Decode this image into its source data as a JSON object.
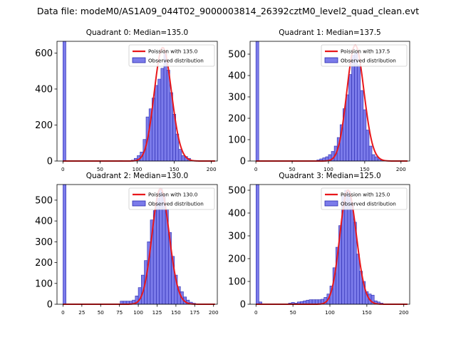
{
  "suptitle": "Data file: modeM0/AS1A09_044T02_9000003814_26392cztM0_level2_quad_clean.evt",
  "colors": {
    "bar_fill": "#7b7bea",
    "bar_edge": "#2b2bb0",
    "line": "#e8171b",
    "axis": "#000000",
    "legend_border": "#cccccc"
  },
  "chart_data": [
    {
      "type": "bar",
      "title": "Quadrant 0: Median=135.0",
      "xlim": [
        -8,
        208
      ],
      "ylim": [
        0,
        665
      ],
      "xticks": [
        0,
        50,
        100,
        150,
        200
      ],
      "yticks": [
        0,
        200,
        400,
        600
      ],
      "bin_width": 4,
      "x": [
        0,
        76,
        92,
        96,
        100,
        104,
        108,
        112,
        116,
        120,
        124,
        128,
        132,
        136,
        140,
        144,
        148,
        152,
        156,
        160,
        164,
        168
      ],
      "values": [
        665,
        3,
        5,
        15,
        30,
        50,
        120,
        245,
        290,
        350,
        420,
        455,
        515,
        595,
        505,
        380,
        260,
        150,
        65,
        30,
        25,
        15
      ],
      "poisson_mean": 135.0,
      "poisson_peak": 630,
      "legend": [
        "Poission with 135.0",
        "Observed distribution"
      ]
    },
    {
      "type": "bar",
      "title": "Quadrant 1: Median=137.5",
      "xlim": [
        -8,
        212
      ],
      "ylim": [
        0,
        560
      ],
      "xticks": [
        0,
        50,
        100,
        150,
        200
      ],
      "yticks": [
        0,
        100,
        200,
        300,
        400,
        500
      ],
      "bin_width": 4,
      "x": [
        0,
        84,
        88,
        92,
        96,
        100,
        104,
        108,
        112,
        116,
        120,
        124,
        128,
        132,
        136,
        140,
        144,
        148,
        152,
        156,
        160,
        164,
        168,
        172
      ],
      "values": [
        560,
        5,
        10,
        15,
        20,
        30,
        45,
        70,
        110,
        170,
        245,
        310,
        405,
        495,
        505,
        450,
        330,
        240,
        145,
        70,
        30,
        20,
        10,
        5
      ],
      "poisson_mean": 137.5,
      "poisson_peak": 540,
      "legend": [
        "Poission with 137.5",
        "Observed distribution"
      ]
    },
    {
      "type": "bar",
      "title": "Quadrant 2: Median=130.0",
      "xlim": [
        -8,
        205
      ],
      "ylim": [
        0,
        575
      ],
      "xticks": [
        0,
        25,
        50,
        75,
        100,
        125,
        150,
        175,
        200
      ],
      "yticks": [
        0,
        100,
        200,
        300,
        400,
        500
      ],
      "bin_width": 4,
      "x": [
        0,
        76,
        80,
        84,
        88,
        92,
        96,
        100,
        104,
        108,
        112,
        116,
        120,
        124,
        128,
        132,
        136,
        140,
        144,
        148,
        152,
        156,
        160,
        164,
        168,
        172
      ],
      "values": [
        575,
        15,
        15,
        15,
        15,
        20,
        40,
        80,
        140,
        210,
        300,
        405,
        450,
        510,
        555,
        525,
        455,
        345,
        230,
        140,
        85,
        60,
        35,
        20,
        10,
        5
      ],
      "poisson_mean": 130.0,
      "poisson_peak": 555,
      "legend": [
        "Poission with 130.0",
        "Observed distribution"
      ]
    },
    {
      "type": "bar",
      "title": "Quadrant 3: Median=125.0",
      "xlim": [
        -8,
        208
      ],
      "ylim": [
        0,
        525
      ],
      "xticks": [
        0,
        50,
        100,
        150,
        200
      ],
      "yticks": [
        0,
        100,
        200,
        300,
        400,
        500
      ],
      "bin_width": 4,
      "x": [
        0,
        4,
        44,
        48,
        52,
        56,
        60,
        64,
        68,
        72,
        76,
        80,
        84,
        88,
        92,
        96,
        100,
        104,
        108,
        112,
        116,
        120,
        124,
        128,
        132,
        136,
        140,
        144,
        148,
        152,
        156,
        160,
        164,
        168
      ],
      "values": [
        525,
        10,
        5,
        8,
        5,
        10,
        12,
        15,
        18,
        20,
        20,
        20,
        20,
        22,
        30,
        45,
        80,
        160,
        250,
        345,
        475,
        500,
        495,
        445,
        360,
        220,
        145,
        100,
        55,
        45,
        40,
        15,
        10,
        5
      ],
      "poisson_mean": 125.0,
      "poisson_peak": 500,
      "legend": [
        "Poission with 125.0",
        "Observed distribution"
      ]
    }
  ]
}
